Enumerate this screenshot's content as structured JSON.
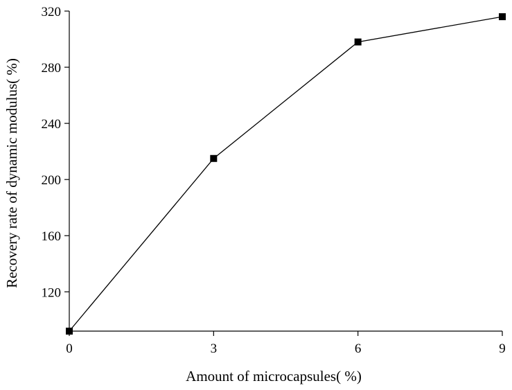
{
  "chart_data": {
    "type": "line",
    "title": "",
    "xlabel": "Amount of microcapsules(   %)",
    "ylabel": "Recovery rate of dynamic modulus(   %)",
    "x": [
      0,
      3,
      6,
      9
    ],
    "series": [
      {
        "values": [
          92,
          215,
          298,
          316
        ],
        "marker": "square",
        "color": "#000000"
      }
    ],
    "xlim": [
      0,
      9
    ],
    "ylim": [
      92,
      320
    ],
    "xticks": [
      "0",
      "3",
      "6",
      "9"
    ],
    "yticks": [
      "120",
      "160",
      "200",
      "240",
      "280",
      "320"
    ],
    "grid": false
  }
}
